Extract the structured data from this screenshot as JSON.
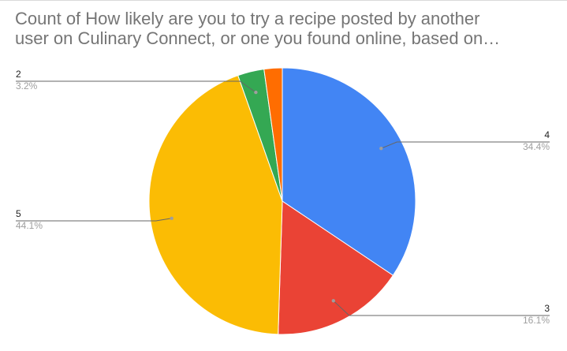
{
  "chart_data": {
    "type": "pie",
    "title_lines": [
      "Count of How likely are you to try a recipe posted by another",
      "user on Culinary Connect, or one you found online, based on…"
    ],
    "slices": [
      {
        "label": "4",
        "percent_label": "34.4%",
        "value": 34.4,
        "color": "#4285f4"
      },
      {
        "label": "3",
        "percent_label": "16.1%",
        "value": 16.1,
        "color": "#ea4335"
      },
      {
        "label": "5",
        "percent_label": "44.1%",
        "value": 44.1,
        "color": "#fbbc04"
      },
      {
        "label": "2",
        "percent_label": "3.2%",
        "value": 3.2,
        "color": "#34a853"
      },
      {
        "label": "",
        "percent_label": "",
        "value": 2.2,
        "color": "#ff6d01"
      }
    ],
    "start_angle": "12 o'clock",
    "direction": "clockwise",
    "legend": "none",
    "leader_line_color": "#666666"
  }
}
